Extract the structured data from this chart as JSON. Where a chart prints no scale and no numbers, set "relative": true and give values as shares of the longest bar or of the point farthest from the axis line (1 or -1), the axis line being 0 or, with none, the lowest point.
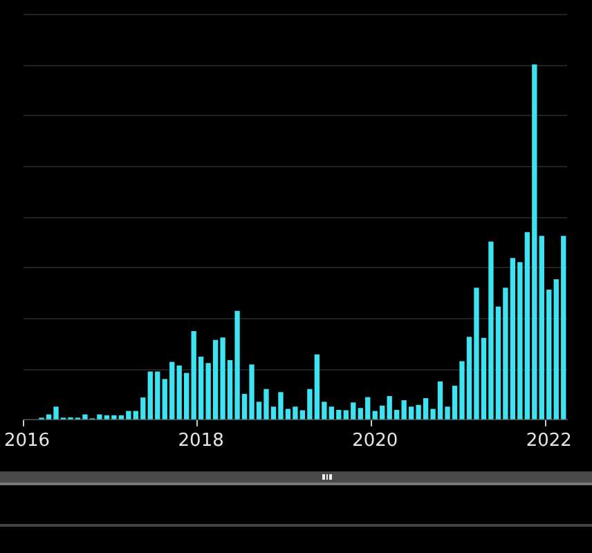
{
  "chart_data": {
    "type": "bar",
    "relative": true,
    "grid": "y",
    "color": "#3de3f0",
    "categories": [
      "2016",
      null,
      null,
      null,
      null,
      null,
      null,
      null,
      null,
      null,
      null,
      null,
      null,
      null,
      null,
      null,
      null,
      null,
      null,
      null,
      null,
      null,
      null,
      null,
      "2018",
      null,
      null,
      null,
      null,
      null,
      null,
      null,
      null,
      null,
      null,
      null,
      null,
      null,
      null,
      null,
      null,
      null,
      null,
      null,
      null,
      null,
      null,
      null,
      "2020",
      null,
      null,
      null,
      null,
      null,
      null,
      null,
      null,
      null,
      null,
      null,
      null,
      null,
      null,
      null,
      null,
      null,
      null,
      null,
      null,
      null,
      null,
      null,
      "2022",
      null,
      null
    ],
    "values": [
      null,
      null,
      0.005,
      0.014,
      0.036,
      0.005,
      0.006,
      0.005,
      0.014,
      0.003,
      0.014,
      0.012,
      0.012,
      0.012,
      0.024,
      0.024,
      0.062,
      0.135,
      0.135,
      0.114,
      0.162,
      0.152,
      0.131,
      0.249,
      0.177,
      0.159,
      0.224,
      0.231,
      0.167,
      0.306,
      0.072,
      0.155,
      0.05,
      0.086,
      0.036,
      0.077,
      0.03,
      0.036,
      0.026,
      0.086,
      0.183,
      0.05,
      0.036,
      0.027,
      0.026,
      0.048,
      0.032,
      0.063,
      0.024,
      0.039,
      0.066,
      0.027,
      0.054,
      0.036,
      0.041,
      0.06,
      0.03,
      0.107,
      0.036,
      0.095,
      0.164,
      0.233,
      0.371,
      0.23,
      0.501,
      0.318,
      0.371,
      0.455,
      0.443,
      0.528,
      1,
      0.517,
      0.366,
      0.395,
      0.517
    ]
  }
}
